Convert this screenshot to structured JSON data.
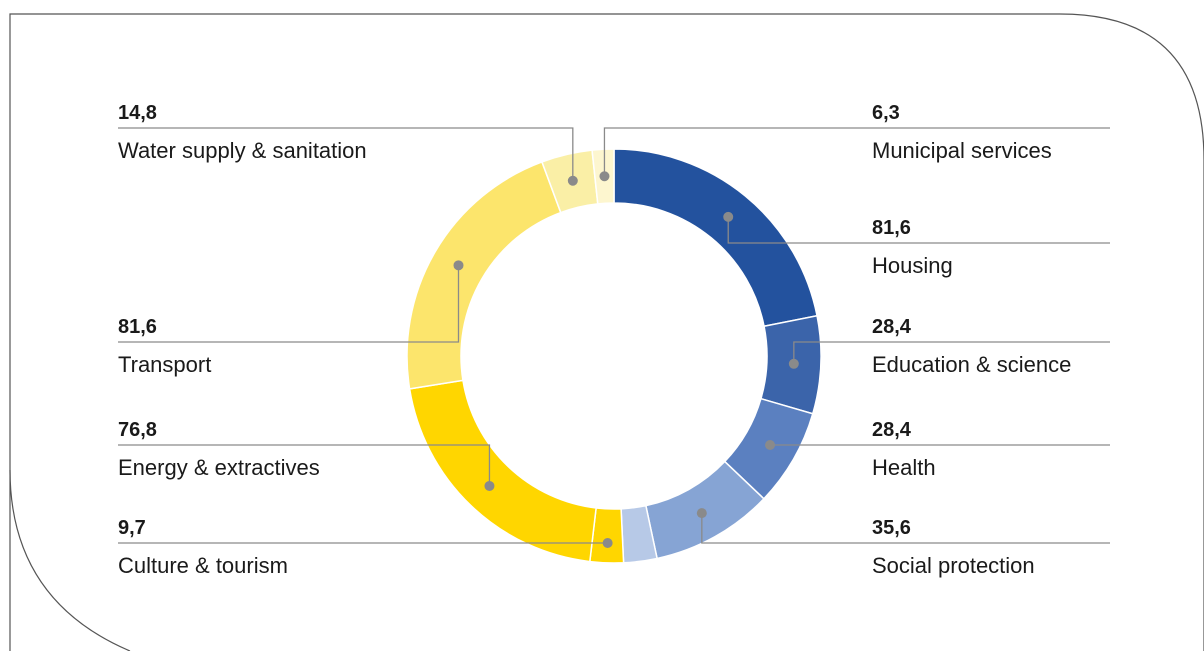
{
  "chart_data": {
    "type": "pie",
    "style": "donut",
    "series": [
      {
        "label": "Housing",
        "display": "81,6",
        "value": 81.6,
        "color": "#23529E",
        "side": "right"
      },
      {
        "label": "Education & science",
        "display": "28,4",
        "value": 28.4,
        "color": "#3B64AA",
        "side": "right"
      },
      {
        "label": "Health",
        "display": "28,4",
        "value": 28.4,
        "color": "#5B80C0",
        "side": "right"
      },
      {
        "label": "Social protection",
        "display": "35,6",
        "value": 35.6,
        "color": "#86A4D4",
        "side": "right"
      },
      {
        "label": "",
        "display": "",
        "value": 9.7,
        "color": "#B7C9E7",
        "side": "none"
      },
      {
        "label": "Culture & tourism",
        "display": "9,7",
        "value": 9.7,
        "color": "#FFD600",
        "side": "left"
      },
      {
        "label": "Energy & extractives",
        "display": "76,8",
        "value": 76.8,
        "color": "#FFD600",
        "side": "left"
      },
      {
        "label": "Transport",
        "display": "81,6",
        "value": 81.6,
        "color": "#FCE56C",
        "side": "left"
      },
      {
        "label": "Water supply & sanitation",
        "display": "14,8",
        "value": 14.8,
        "color": "#FAEFA6",
        "side": "left"
      },
      {
        "label": "Municipal services",
        "display": "6,3",
        "value": 6.3,
        "color": "#FDF6CF",
        "side": "right"
      }
    ]
  }
}
